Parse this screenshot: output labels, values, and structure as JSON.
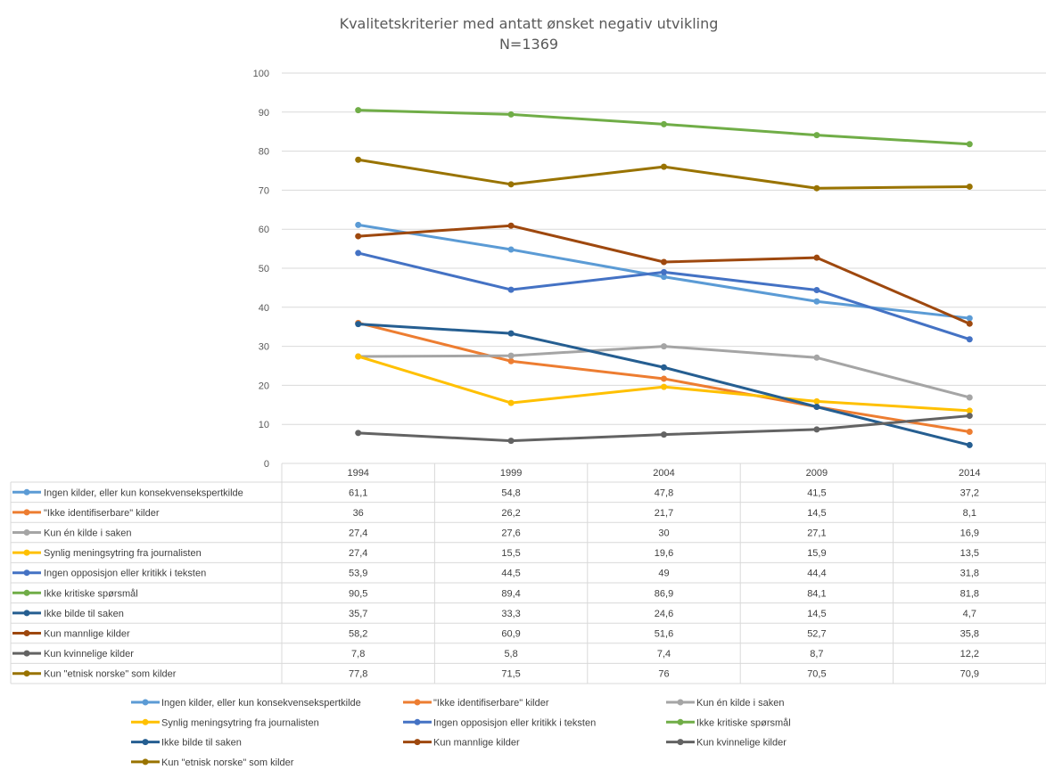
{
  "chart_data": {
    "type": "line",
    "title": "Kvalitetskriterier med antatt ønsket negativ utvikling",
    "subtitle": "N=1369",
    "categories": [
      "1994",
      "1999",
      "2004",
      "2009",
      "2014"
    ],
    "ylim": [
      0,
      100
    ],
    "yticks": [
      "0",
      "10",
      "20",
      "30",
      "40",
      "50",
      "60",
      "70",
      "80",
      "90",
      "100"
    ],
    "grid": true,
    "legend_position": "bottom",
    "data_table": true,
    "series": [
      {
        "name": "Ingen kilder, eller kun konsekvensekspertkilde",
        "color": "#5b9bd5",
        "values": [
          61.1,
          54.8,
          47.8,
          41.5,
          37.2
        ],
        "labels": [
          "61,1",
          "54,8",
          "47,8",
          "41,5",
          "37,2"
        ]
      },
      {
        "name": "\"Ikke identifiserbare\" kilder",
        "color": "#ed7d31",
        "values": [
          36,
          26.2,
          21.7,
          14.5,
          8.1
        ],
        "labels": [
          "36",
          "26,2",
          "21,7",
          "14,5",
          "8,1"
        ]
      },
      {
        "name": "Kun én kilde i saken",
        "color": "#a5a5a5",
        "values": [
          27.4,
          27.6,
          30,
          27.1,
          16.9
        ],
        "labels": [
          "27,4",
          "27,6",
          "30",
          "27,1",
          "16,9"
        ]
      },
      {
        "name": "Synlig meningsytring fra journalisten",
        "color": "#ffc000",
        "values": [
          27.4,
          15.5,
          19.6,
          15.9,
          13.5
        ],
        "labels": [
          "27,4",
          "15,5",
          "19,6",
          "15,9",
          "13,5"
        ]
      },
      {
        "name": "Ingen opposisjon eller kritikk i teksten",
        "color": "#4472c4",
        "values": [
          53.9,
          44.5,
          49,
          44.4,
          31.8
        ],
        "labels": [
          "53,9",
          "44,5",
          "49",
          "44,4",
          "31,8"
        ]
      },
      {
        "name": "Ikke kritiske spørsmål",
        "color": "#70ad47",
        "values": [
          90.5,
          89.4,
          86.9,
          84.1,
          81.8
        ],
        "labels": [
          "90,5",
          "89,4",
          "86,9",
          "84,1",
          "81,8"
        ]
      },
      {
        "name": "Ikke bilde til saken",
        "color": "#255e91",
        "values": [
          35.7,
          33.3,
          24.6,
          14.5,
          4.7
        ],
        "labels": [
          "35,7",
          "33,3",
          "24,6",
          "14,5",
          "4,7"
        ]
      },
      {
        "name": "Kun mannlige kilder",
        "color": "#9e480e",
        "values": [
          58.2,
          60.9,
          51.6,
          52.7,
          35.8
        ],
        "labels": [
          "58,2",
          "60,9",
          "51,6",
          "52,7",
          "35,8"
        ]
      },
      {
        "name": "Kun kvinnelige kilder",
        "color": "#636363",
        "values": [
          7.8,
          5.8,
          7.4,
          8.7,
          12.2
        ],
        "labels": [
          "7,8",
          "5,8",
          "7,4",
          "8,7",
          "12,2"
        ]
      },
      {
        "name": "Kun \"etnisk norske\" som kilder",
        "color": "#997300",
        "values": [
          77.8,
          71.5,
          76,
          70.5,
          70.9
        ],
        "labels": [
          "77,8",
          "71,5",
          "76",
          "70,5",
          "70,9"
        ]
      }
    ]
  }
}
